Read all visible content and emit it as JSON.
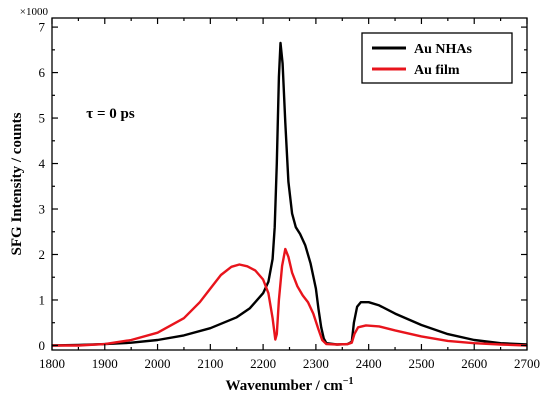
{
  "chart_data": {
    "type": "line",
    "title": "",
    "xlabel": "Wavenumber / cm",
    "xlabel_superscript": "−1",
    "ylabel": "SFG Intensity / counts",
    "y_multiplier": "×1000",
    "annotation": "τ = 0 ps",
    "xlim": [
      1800,
      2700
    ],
    "ylim": [
      -0.1,
      7.2
    ],
    "xticks": [
      1800,
      1900,
      2000,
      2100,
      2200,
      2300,
      2400,
      2500,
      2600,
      2700
    ],
    "yticks": [
      0,
      1,
      2,
      3,
      4,
      5,
      6,
      7
    ],
    "grid": false,
    "legend_position": "top-right",
    "series": [
      {
        "name": "Au NHAs",
        "color": "#000000",
        "points": [
          [
            1800,
            0.0
          ],
          [
            1850,
            0.01
          ],
          [
            1900,
            0.03
          ],
          [
            1950,
            0.06
          ],
          [
            2000,
            0.12
          ],
          [
            2050,
            0.22
          ],
          [
            2100,
            0.38
          ],
          [
            2150,
            0.62
          ],
          [
            2175,
            0.82
          ],
          [
            2200,
            1.15
          ],
          [
            2210,
            1.4
          ],
          [
            2218,
            1.9
          ],
          [
            2222,
            2.6
          ],
          [
            2226,
            4.0
          ],
          [
            2230,
            5.9
          ],
          [
            2233,
            6.65
          ],
          [
            2237,
            6.2
          ],
          [
            2242,
            4.9
          ],
          [
            2248,
            3.6
          ],
          [
            2255,
            2.9
          ],
          [
            2262,
            2.6
          ],
          [
            2270,
            2.45
          ],
          [
            2280,
            2.2
          ],
          [
            2290,
            1.8
          ],
          [
            2300,
            1.25
          ],
          [
            2305,
            0.8
          ],
          [
            2310,
            0.4
          ],
          [
            2315,
            0.15
          ],
          [
            2320,
            0.05
          ],
          [
            2340,
            0.02
          ],
          [
            2360,
            0.03
          ],
          [
            2368,
            0.08
          ],
          [
            2372,
            0.5
          ],
          [
            2378,
            0.85
          ],
          [
            2385,
            0.95
          ],
          [
            2400,
            0.95
          ],
          [
            2420,
            0.88
          ],
          [
            2450,
            0.7
          ],
          [
            2500,
            0.45
          ],
          [
            2550,
            0.25
          ],
          [
            2600,
            0.12
          ],
          [
            2650,
            0.05
          ],
          [
            2700,
            0.02
          ]
        ]
      },
      {
        "name": "Au film",
        "color": "#e8141c",
        "points": [
          [
            1800,
            0.0
          ],
          [
            1850,
            0.0
          ],
          [
            1900,
            0.03
          ],
          [
            1950,
            0.12
          ],
          [
            2000,
            0.28
          ],
          [
            2050,
            0.6
          ],
          [
            2080,
            0.95
          ],
          [
            2100,
            1.25
          ],
          [
            2120,
            1.55
          ],
          [
            2140,
            1.73
          ],
          [
            2155,
            1.78
          ],
          [
            2170,
            1.74
          ],
          [
            2185,
            1.65
          ],
          [
            2200,
            1.45
          ],
          [
            2210,
            1.15
          ],
          [
            2218,
            0.6
          ],
          [
            2223,
            0.13
          ],
          [
            2226,
            0.25
          ],
          [
            2230,
            1.0
          ],
          [
            2236,
            1.75
          ],
          [
            2242,
            2.12
          ],
          [
            2248,
            1.95
          ],
          [
            2255,
            1.6
          ],
          [
            2265,
            1.3
          ],
          [
            2275,
            1.1
          ],
          [
            2285,
            0.95
          ],
          [
            2295,
            0.7
          ],
          [
            2305,
            0.35
          ],
          [
            2312,
            0.12
          ],
          [
            2320,
            0.03
          ],
          [
            2340,
            0.02
          ],
          [
            2360,
            0.03
          ],
          [
            2368,
            0.06
          ],
          [
            2373,
            0.25
          ],
          [
            2380,
            0.4
          ],
          [
            2395,
            0.44
          ],
          [
            2420,
            0.42
          ],
          [
            2450,
            0.33
          ],
          [
            2500,
            0.2
          ],
          [
            2550,
            0.1
          ],
          [
            2600,
            0.05
          ],
          [
            2650,
            0.02
          ],
          [
            2700,
            0.0
          ]
        ]
      }
    ]
  }
}
